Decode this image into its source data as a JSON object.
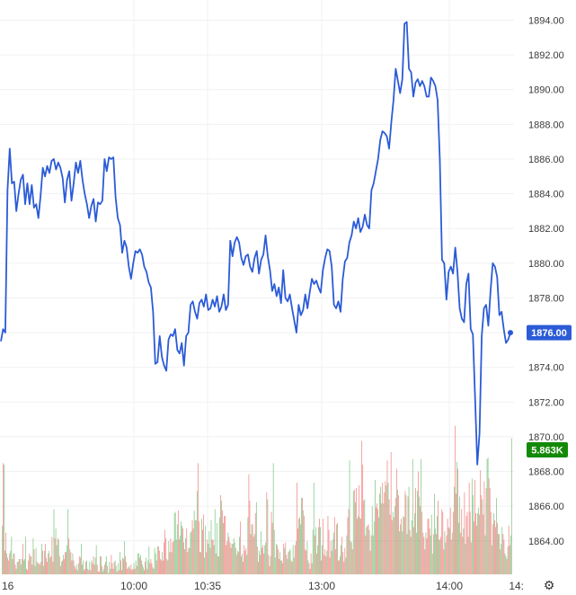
{
  "chart_data": {
    "type": "line",
    "title": "",
    "xlabel": "",
    "ylabel": "",
    "ylim": [
      1862.0,
      1895.0
    ],
    "y_ticks": [
      "1894.00",
      "1892.00",
      "1890.00",
      "1888.00",
      "1886.00",
      "1884.00",
      "1882.00",
      "1880.00",
      "1878.00",
      "1876.00",
      "1874.00",
      "1872.00",
      "1870.00",
      "1868.00",
      "1866.00",
      "1864.00"
    ],
    "x_ticks": [
      "16",
      "10:00",
      "10:35",
      "13:00",
      "14:00",
      "14:"
    ],
    "grid": true,
    "series": [
      {
        "kind": "price-line",
        "color": "#2b5bd7",
        "values": [
          1875.5,
          1876.2,
          1876.0,
          1884.2,
          1886.6,
          1884.6,
          1884.7,
          1883.0,
          1884.0,
          1884.8,
          1885.1,
          1883.4,
          1884.6,
          1883.4,
          1884.5,
          1883.2,
          1883.4,
          1882.6,
          1883.9,
          1885.5,
          1885.0,
          1885.6,
          1885.2,
          1885.9,
          1886.0,
          1885.4,
          1885.8,
          1885.5,
          1884.9,
          1883.5,
          1884.8,
          1885.3,
          1883.6,
          1884.6,
          1885.8,
          1885.2,
          1885.9,
          1884.8,
          1884.0,
          1883.4,
          1882.6,
          1883.3,
          1883.7,
          1882.4,
          1883.5,
          1883.4,
          1883.6,
          1886.0,
          1885.3,
          1886.1,
          1886.0,
          1886.1,
          1883.8,
          1882.6,
          1882.2,
          1880.6,
          1881.3,
          1880.9,
          1879.8,
          1879.1,
          1880.0,
          1880.7,
          1880.6,
          1880.8,
          1880.5,
          1879.8,
          1879.5,
          1878.9,
          1878.6,
          1877.2,
          1874.2,
          1874.3,
          1875.8,
          1874.6,
          1874.1,
          1873.8,
          1875.6,
          1875.9,
          1875.8,
          1876.2,
          1875.0,
          1874.8,
          1875.4,
          1874.1,
          1875.8,
          1876.0,
          1877.6,
          1877.8,
          1877.2,
          1876.8,
          1877.7,
          1877.9,
          1877.5,
          1878.2,
          1877.3,
          1877.4,
          1877.9,
          1877.5,
          1878.1,
          1877.2,
          1877.5,
          1878.2,
          1877.3,
          1877.6,
          1881.3,
          1880.4,
          1881.2,
          1881.5,
          1881.2,
          1880.3,
          1879.9,
          1880.4,
          1880.5,
          1879.8,
          1879.5,
          1880.3,
          1880.7,
          1879.4,
          1880.2,
          1880.5,
          1881.6,
          1880.4,
          1879.6,
          1878.4,
          1878.8,
          1878.1,
          1878.6,
          1877.7,
          1879.6,
          1878.0,
          1877.8,
          1878.2,
          1877.4,
          1876.7,
          1876.0,
          1877.6,
          1877.0,
          1877.3,
          1878.2,
          1877.4,
          1878.3,
          1879.1,
          1878.8,
          1879.0,
          1878.6,
          1878.3,
          1879.6,
          1880.3,
          1880.8,
          1880.7,
          1879.8,
          1877.6,
          1877.4,
          1877.8,
          1877.2,
          1879.1,
          1880.1,
          1880.3,
          1881.2,
          1881.6,
          1882.4,
          1882.0,
          1882.6,
          1881.8,
          1882.1,
          1882.8,
          1882.2,
          1882.0,
          1884.2,
          1884.6,
          1885.3,
          1886.0,
          1887.1,
          1887.6,
          1887.5,
          1887.3,
          1886.6,
          1888.1,
          1889.4,
          1891.2,
          1890.5,
          1889.8,
          1890.6,
          1893.8,
          1893.9,
          1891.2,
          1891.0,
          1889.6,
          1890.4,
          1890.6,
          1890.2,
          1890.5,
          1890.2,
          1889.6,
          1889.6,
          1890.7,
          1890.5,
          1890.2,
          1889.4,
          1886.0,
          1880.2,
          1880.0,
          1877.9,
          1879.5,
          1879.8,
          1879.4,
          1880.9,
          1879.5,
          1877.4,
          1876.8,
          1876.6,
          1878.8,
          1879.4,
          1876.2,
          1875.9,
          1872.2,
          1868.4,
          1870.2,
          1875.8,
          1877.4,
          1877.6,
          1876.4,
          1878.4,
          1880.0,
          1879.8,
          1879.2,
          1877.0,
          1877.2,
          1876.2,
          1875.4,
          1875.6,
          1876.0
        ]
      },
      {
        "kind": "volume",
        "color_up": "#4caf50",
        "color_down": "#ef5350",
        "max": 11.0,
        "values": [
          3.5,
          8.0,
          7.9,
          1.7,
          3.0,
          1.5,
          1.2,
          1.0,
          1.5,
          1.7,
          2.7,
          1.1,
          1.5,
          1.5,
          0.7,
          0.4,
          0.9,
          0.9,
          1.1,
          1.1,
          0.7,
          1.1,
          2.2,
          1.0,
          1.1,
          2.7,
          0.4,
          0.3,
          1.0,
          1.5,
          1.3,
          1.3,
          0.7,
          2.6,
          1.8,
          0.6,
          1.9,
          0.9,
          0.8,
          0.8,
          0.7,
          0.9,
          2.2,
          1.7,
          0.6,
          1.7,
          2.2,
          1.2,
          0.9,
          1.5,
          1.7,
          1.2,
          1.3,
          2.7,
          0.9,
          4.7,
          2.6,
          3.3,
          2.1,
          2.6,
          2.5,
          1.3,
          0.6,
          0.9,
          1.0,
          1.4,
          1.1,
          1.6,
          1.6,
          2.1,
          4.7,
          2.6,
          1.8,
          1.6,
          1.0,
          1.5,
          1.0,
          0.6,
          0.4,
          0.7,
          0.3,
          0.8,
          1.3,
          1.2,
          2.2,
          0.7,
          1.0,
          0.3,
          0.4,
          0.9,
          1.0,
          0.4,
          0.3,
          0.9,
          0.3,
          1.0,
          0.8,
          1.3,
          0.7,
          1.2,
          2.1,
          0.7,
          0.2,
          0.2,
          1.3,
          1.3,
          0.6,
          0.2,
          0.4,
          0.7,
          0.9,
          1.3,
          0.6,
          0.1,
          0.9,
          0.4,
          1.4,
          0.8,
          0.4,
          0.9,
          1.0,
          0.6,
          0.2,
          0.8,
          0.3,
          1.6,
          1.0,
          0.3,
          1.2,
          1.1,
          2.4,
          1.3,
          0.9,
          0.4,
          0.5,
          0.6,
          0.4,
          0.7,
          0.3,
          0.4,
          0.8,
          0.4,
          1.0,
          0.6,
          1.5,
          1.5,
          1.2,
          1.4,
          1.0,
          0.7,
          0.5,
          0.3,
          0.9,
          1.2,
          0.4,
          1.0,
          2.0,
          0.8,
          1.1,
          0.8,
          0.5,
          0.4,
          1.9,
          1.5,
          1.0,
          2.0,
          2.0,
          1.7,
          1.1,
          1.0,
          1.6,
          1.0,
          2.3,
          3.2,
          2.6,
          1.1,
          1.0,
          2.4,
          1.6,
          2.6,
          1.6,
          2.3,
          2.4,
          4.4,
          4.5,
          2.5,
          3.6,
          4.6,
          2.5,
          2.8,
          3.8,
          3.5,
          3.3,
          2.3,
          1.8,
          2.6,
          3.3,
          1.6,
          1.9,
          1.9,
          3.0,
          3.1,
          3.9,
          3.3,
          4.6,
          3.9,
          3.9,
          6.0,
          8.0,
          3.8,
          1.6,
          1.6,
          4.0,
          3.2,
          4.3,
          1.2,
          3.5,
          1.6,
          2.5,
          2.2,
          3.1,
          1.9,
          3.9,
          2.5,
          2.5,
          2.1,
          4.7,
          1.5,
          3.7,
          1.3,
          1.3,
          4.1,
          5.7,
          5.3,
          4.6,
          3.7,
          4.2,
          4.2,
          2.1,
          2.4,
          3.0,
          2.7,
          2.3,
          1.9,
          2.2,
          2.2,
          2.6,
          2.3,
          1.9,
          1.4,
          1.7,
          1.6,
          2.7,
          3.8,
          1.3,
          1.5,
          0.9,
          2.1,
          1.7,
          1.9,
          1.4,
          4.1,
          7.2,
          5.3,
          2.9,
          3.6,
          3.6,
          2.7,
          2.9,
          4.4,
          5.2,
          2.0,
          0.9,
          1.7,
          1.4,
          3.1,
          1.9,
          2.1,
          1.5,
          2.1,
          2.3,
          5.9,
          5.4,
          1.4,
          0.6,
          1.3,
          4.5,
          3.7,
          8.0,
          3.2,
          1.2,
          2.2,
          2.1,
          1.8,
          1.1,
          1.6,
          1.0,
          1.0,
          0.8,
          2.2,
          1.9,
          2.3,
          1.4,
          1.1,
          1.6,
          1.7,
          1.8,
          1.0,
          0.9,
          2.1,
          1.2,
          2.1,
          2.4,
          6.6,
          3.3,
          4.0,
          4.1,
          3.6,
          5.5,
          5.5,
          4.6,
          4.2,
          1.8,
          1.7,
          2.4,
          1.0,
          0.8,
          0.4,
          1.5,
          0.8,
          3.2,
          6.6,
          2.8,
          3.4,
          1.5,
          2.1,
          3.4,
          4.0,
          3.4,
          1.0,
          2.1,
          4.0,
          1.4,
          1.8,
          1.3,
          1.7,
          4.2,
          3.2,
          1.2,
          2.4,
          1.7,
          2.5,
          3.0,
          4.1,
          1.8,
          3.6,
          3.7,
          1.0,
          1.0,
          1.3,
          2.1,
          2.7,
          1.6,
          0.9,
          1.9,
          1.2,
          2.8,
          4.1,
          4.7,
          8.2,
          2.4,
          2.3,
          1.8,
          6.0,
          6.1,
          5.2,
          6.2,
          4.0,
          4.2,
          6.4,
          4.1,
          4.0,
          9.6,
          7.9,
          5.3,
          5.4,
          2.8,
          3.4,
          3.5,
          3.6,
          3.2,
          1.7,
          2.8,
          4.9,
          2.8,
          3.8,
          6.8,
          4.8,
          5.1,
          4.7,
          4.1,
          5.8,
          6.3,
          5.1,
          6.6,
          5.1,
          5.9,
          6.7,
          6.4,
          8.2,
          6.6,
          5.4,
          4.3,
          8.8,
          3.9,
          4.5,
          4.1,
          4.9,
          5.5,
          7.6,
          6.1,
          5.7,
          3.1,
          3.6,
          4.0,
          3.1,
          4.2,
          4.1,
          6.0,
          5.7,
          2.9,
          5.6,
          6.3,
          3.2,
          2.7,
          3.9,
          8.3,
          3.4,
          4.4,
          6.2,
          3.0,
          6.0,
          7.4,
          5.6,
          4.9,
          8.3,
          4.5,
          3.0,
          2.7,
          1.8,
          3.0,
          2.6,
          4.0,
          4.0,
          3.3,
          2.8,
          4.3,
          1.5,
          2.9,
          5.8,
          3.3,
          2.9,
          4.2,
          5.3,
          2.5,
          2.5,
          2.7,
          4.7,
          4.5,
          1.8,
          3.1,
          2.3,
          2.8,
          4.0,
          3.4,
          3.3,
          4.8,
          2.5,
          3.0,
          4.5,
          6.3,
          10.7,
          5.8,
          8.1,
          7.6,
          3.7,
          5.6,
          3.0,
          4.7,
          2.7,
          3.3,
          5.9,
          2.2,
          4.2,
          4.5,
          2.7,
          6.6,
          4.5,
          2.3,
          6.9,
          5.7,
          3.8,
          6.8,
          4.4,
          3.5,
          4.4,
          4.8,
          4.3,
          7.5,
          5.7,
          5.4,
          4.3,
          6.7,
          2.8,
          6.2,
          8.3,
          8.4,
          6.9,
          6.2,
          4.5,
          2.1,
          3.6,
          4.4,
          3.9,
          3.4,
          5.5,
          3.7,
          2.9,
          2.9,
          1.8,
          2.2,
          3.4,
          2.9,
          2.5,
          1.5,
          1.3,
          1.1,
          2.0,
          3.5,
          2.1,
          2.8,
          9.8
        ]
      }
    ],
    "markers": {
      "last_price": {
        "label": "1876.00",
        "color": "#2b5bd7"
      },
      "last_volume": {
        "label": "5.863K",
        "color": "#138a07"
      }
    }
  },
  "controls": {
    "settings_icon": "gear-icon"
  }
}
